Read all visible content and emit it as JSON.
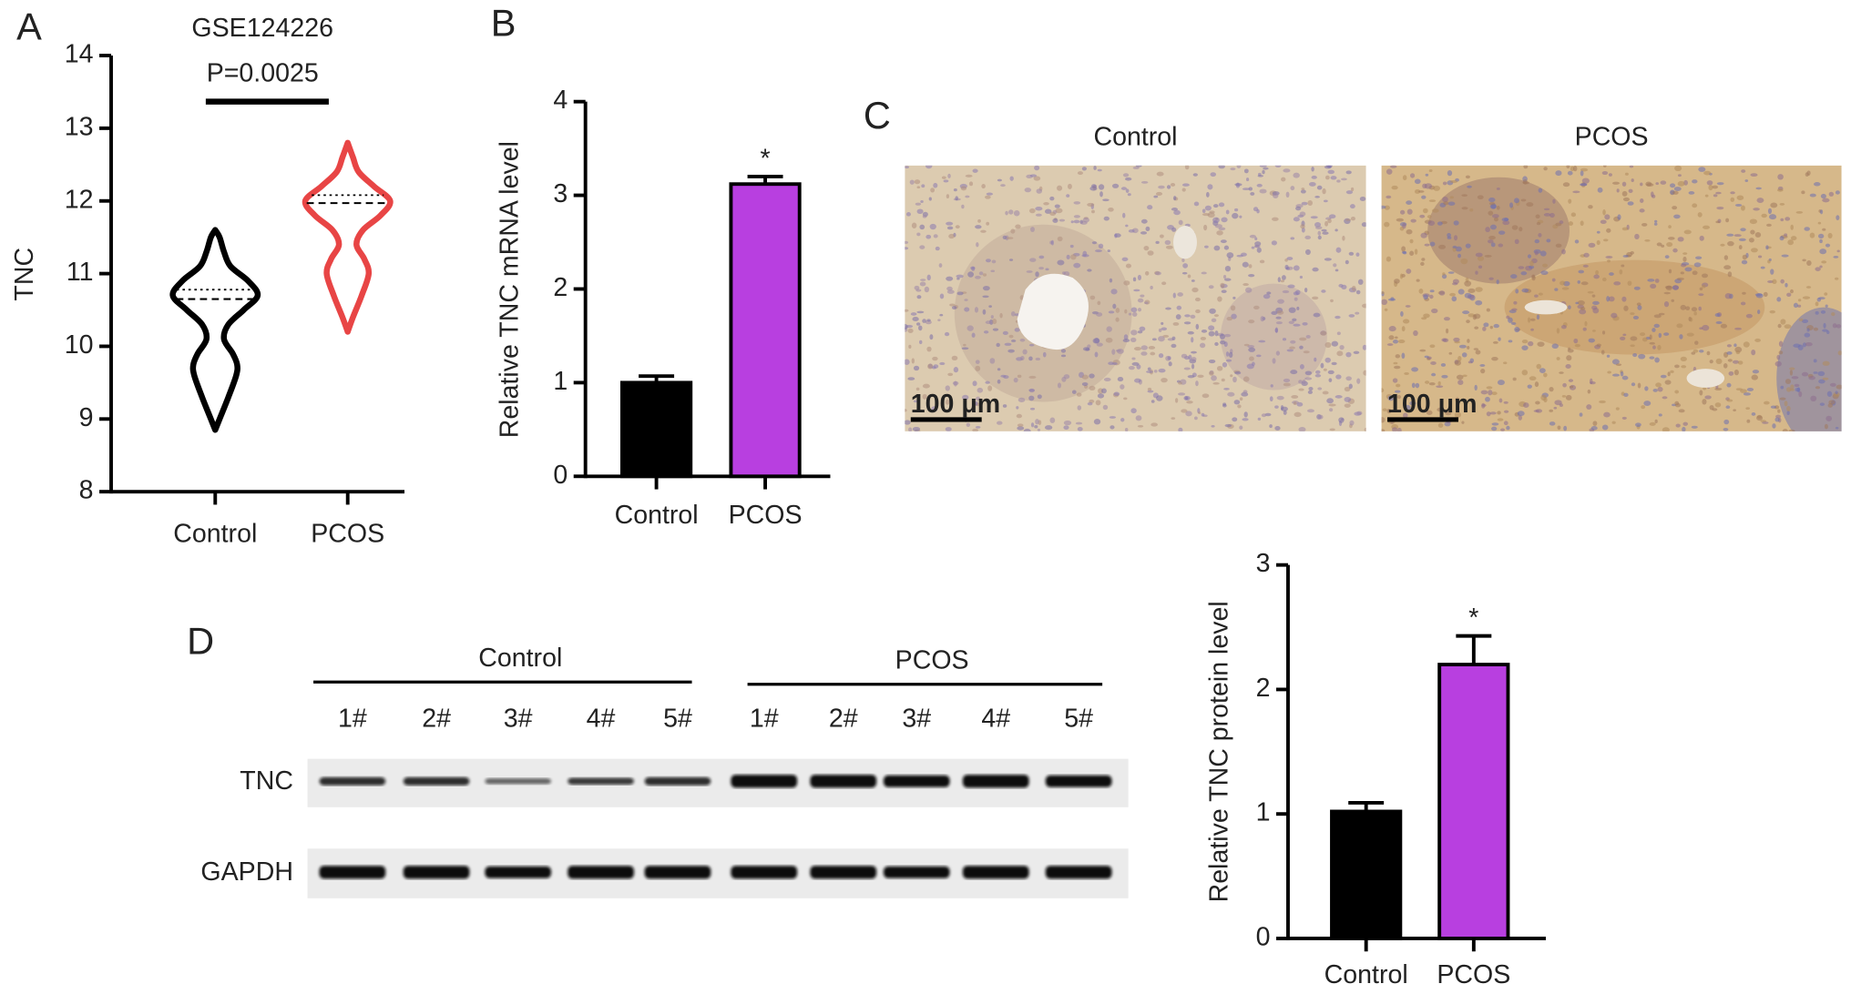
{
  "chart_data": [
    {
      "type": "violin",
      "panel": "A",
      "title": "GSE124226",
      "annotation": "P=0.0025",
      "y_label": "TNC",
      "categories": [
        "Control",
        "PCOS"
      ],
      "series": [
        {
          "name": "Control",
          "color": "#000000",
          "median": 10.65,
          "q3": 10.78,
          "density_y": [
            8.85,
            9.0,
            9.3,
            9.6,
            9.75,
            9.9,
            10.1,
            10.3,
            10.5,
            10.7,
            10.9,
            11.1,
            11.3,
            11.5,
            11.6
          ],
          "density": [
            0,
            0.1,
            0.3,
            0.48,
            0.5,
            0.4,
            0.2,
            0.3,
            0.65,
            0.97,
            0.75,
            0.35,
            0.2,
            0.1,
            0
          ]
        },
        {
          "name": "PCOS",
          "color": "#e84545",
          "median": 11.97,
          "q3": 12.08,
          "density_y": [
            10.2,
            10.4,
            10.7,
            11.0,
            11.2,
            11.4,
            11.6,
            11.8,
            12.0,
            12.2,
            12.4,
            12.6,
            12.8
          ],
          "density": [
            0,
            0.12,
            0.32,
            0.48,
            0.38,
            0.2,
            0.35,
            0.75,
            0.97,
            0.6,
            0.25,
            0.12,
            0
          ]
        }
      ],
      "ylim": [
        8,
        14
      ],
      "yticks": [
        8,
        9,
        10,
        11,
        12,
        13,
        14
      ]
    },
    {
      "type": "bar",
      "panel": "B",
      "y_label": "Relative TNC mRNA level",
      "categories": [
        "Control",
        "PCOS"
      ],
      "values": [
        1.0,
        3.12
      ],
      "errors": [
        0.07,
        0.08
      ],
      "colors": [
        "#000000",
        "#b83fe0"
      ],
      "significance": [
        null,
        "*"
      ],
      "ylim": [
        0,
        4
      ],
      "yticks": [
        0,
        1,
        2,
        3,
        4
      ]
    },
    {
      "type": "bar",
      "y_label": "Relative TNC protein level",
      "categories": [
        "Control",
        "PCOS"
      ],
      "values": [
        1.02,
        2.2
      ],
      "errors": [
        0.07,
        0.23
      ],
      "colors": [
        "#000000",
        "#b83fe0"
      ],
      "significance": [
        null,
        "*"
      ],
      "ylim": [
        0,
        3
      ],
      "yticks": [
        0,
        1,
        2,
        3
      ]
    }
  ],
  "micrographs": {
    "panel": "C",
    "images": [
      {
        "title": "Control",
        "scale_bar": "100 μm"
      },
      {
        "title": "PCOS",
        "scale_bar": "100 μm"
      }
    ]
  },
  "blot": {
    "panel": "D",
    "groups": [
      "Control",
      "PCOS"
    ],
    "lanes": [
      "1#",
      "2#",
      "3#",
      "4#",
      "5#",
      "1#",
      "2#",
      "3#",
      "4#",
      "5#"
    ],
    "rows": [
      "TNC",
      "GAPDH"
    ]
  }
}
